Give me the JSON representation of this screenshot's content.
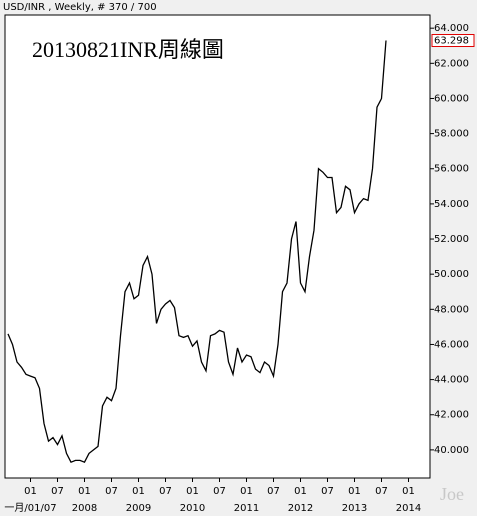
{
  "chart_data": {
    "type": "line",
    "header": "USD/INR , Weekly, # 370 / 700",
    "title": "20130821INR周線圖",
    "watermark": "Joe",
    "x": [
      "2006-08",
      "2006-09",
      "2006-10",
      "2006-11",
      "2006-12",
      "2007-01",
      "2007-02",
      "2007-03",
      "2007-04",
      "2007-05",
      "2007-06",
      "2007-07",
      "2007-08",
      "2007-09",
      "2007-10",
      "2007-11",
      "2007-12",
      "2008-01",
      "2008-02",
      "2008-03",
      "2008-04",
      "2008-05",
      "2008-06",
      "2008-07",
      "2008-08",
      "2008-09",
      "2008-10",
      "2008-11",
      "2008-12",
      "2009-01",
      "2009-02",
      "2009-03",
      "2009-04",
      "2009-05",
      "2009-06",
      "2009-07",
      "2009-08",
      "2009-09",
      "2009-10",
      "2009-11",
      "2009-12",
      "2010-01",
      "2010-02",
      "2010-03",
      "2010-04",
      "2010-05",
      "2010-06",
      "2010-07",
      "2010-08",
      "2010-09",
      "2010-10",
      "2010-11",
      "2010-12",
      "2011-01",
      "2011-02",
      "2011-03",
      "2011-04",
      "2011-05",
      "2011-06",
      "2011-07",
      "2011-08",
      "2011-09",
      "2011-10",
      "2011-11",
      "2011-12",
      "2012-01",
      "2012-02",
      "2012-03",
      "2012-04",
      "2012-05",
      "2012-06",
      "2012-07",
      "2012-08",
      "2012-09",
      "2012-10",
      "2012-11",
      "2012-12",
      "2013-01",
      "2013-02",
      "2013-03",
      "2013-04",
      "2013-05",
      "2013-06",
      "2013-07",
      "2013-08"
    ],
    "series": [
      {
        "name": "USD/INR",
        "color": "#000000",
        "values": [
          46.6,
          46.0,
          45.0,
          44.7,
          44.3,
          44.2,
          44.1,
          43.5,
          41.5,
          40.5,
          40.7,
          40.3,
          40.8,
          39.8,
          39.3,
          39.4,
          39.4,
          39.3,
          39.8,
          40.0,
          40.2,
          42.5,
          43.0,
          42.8,
          43.5,
          46.5,
          49.0,
          49.5,
          48.6,
          48.8,
          50.5,
          51.0,
          50.0,
          47.2,
          48.0,
          48.3,
          48.5,
          48.1,
          46.5,
          46.4,
          46.5,
          45.9,
          46.2,
          45.0,
          44.5,
          46.5,
          46.6,
          46.8,
          46.7,
          45.0,
          44.3,
          45.8,
          45.0,
          45.4,
          45.3,
          44.6,
          44.4,
          45.0,
          44.8,
          44.2,
          46.0,
          49.0,
          49.5,
          52.0,
          53.0,
          49.5,
          49.0,
          51.0,
          52.5,
          56.0,
          55.8,
          55.5,
          55.5,
          53.5,
          53.8,
          55.0,
          54.8,
          53.5,
          54.0,
          54.3,
          54.2,
          56.0,
          59.5,
          60.0,
          63.3
        ]
      }
    ],
    "last_price": {
      "value": 63.298,
      "label": "63.298"
    },
    "ylim": [
      38.4,
      64.75
    ],
    "yticks": [
      {
        "value": 40,
        "label": "40.000"
      },
      {
        "value": 42,
        "label": "42.000"
      },
      {
        "value": 44,
        "label": "44.000"
      },
      {
        "value": 46,
        "label": "46.000"
      },
      {
        "value": 48,
        "label": "48.000"
      },
      {
        "value": 50,
        "label": "50.000"
      },
      {
        "value": 52,
        "label": "52.000"
      },
      {
        "value": 54,
        "label": "54.000"
      },
      {
        "value": 56,
        "label": "56.000"
      },
      {
        "value": 58,
        "label": "58.000"
      },
      {
        "value": 60,
        "label": "60.000"
      },
      {
        "value": 62,
        "label": "62.000"
      },
      {
        "value": 64,
        "label": "64.000"
      }
    ],
    "xticks": [
      {
        "value": "2007-01",
        "label": "01"
      },
      {
        "value": "2007-07",
        "label": "07"
      },
      {
        "value": "2008-01",
        "label": "01"
      },
      {
        "value": "2008-07",
        "label": "07"
      },
      {
        "value": "2009-01",
        "label": "01"
      },
      {
        "value": "2009-07",
        "label": "07"
      },
      {
        "value": "2010-01",
        "label": "01"
      },
      {
        "value": "2010-07",
        "label": "07"
      },
      {
        "value": "2011-01",
        "label": "01"
      },
      {
        "value": "2011-07",
        "label": "07"
      },
      {
        "value": "2012-01",
        "label": "01"
      },
      {
        "value": "2012-07",
        "label": "07"
      },
      {
        "value": "2013-01",
        "label": "01"
      },
      {
        "value": "2013-07",
        "label": "07"
      },
      {
        "value": "2014-01",
        "label": "01"
      }
    ],
    "year_labels": [
      {
        "value": "2007-01",
        "label": "一月/01/07"
      },
      {
        "value": "2008-01",
        "label": "2008"
      },
      {
        "value": "2009-01",
        "label": "2009"
      },
      {
        "value": "2010-01",
        "label": "2010"
      },
      {
        "value": "2011-01",
        "label": "2011"
      },
      {
        "value": "2012-01",
        "label": "2012"
      },
      {
        "value": "2013-01",
        "label": "2013"
      },
      {
        "value": "2014-01",
        "label": "2014"
      }
    ]
  }
}
